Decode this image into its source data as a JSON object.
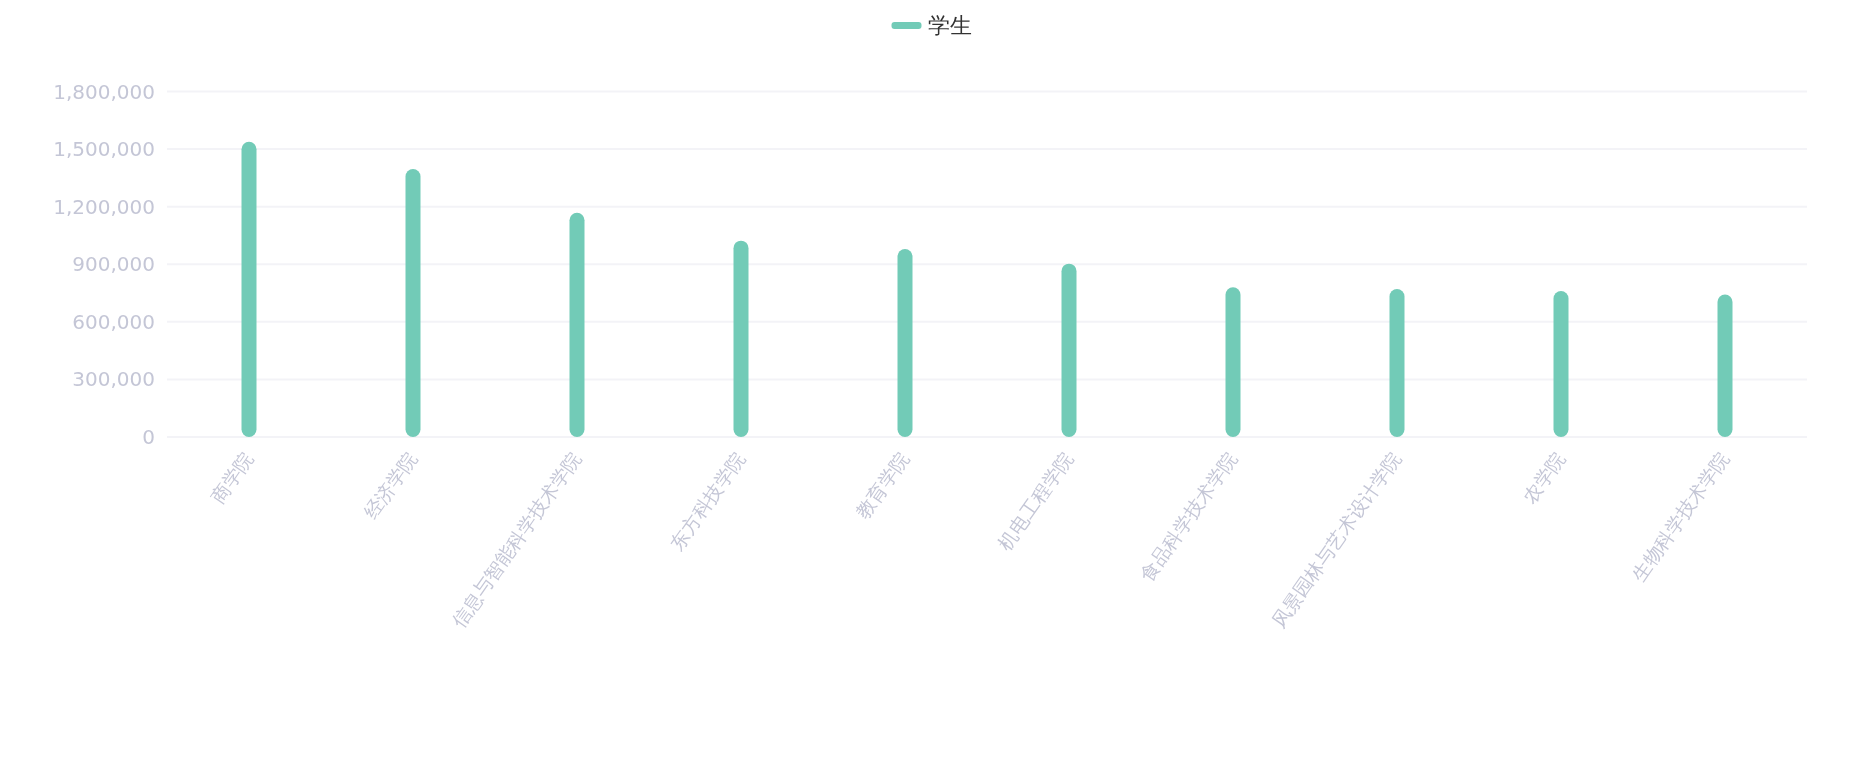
{
  "chart_data": {
    "type": "bar",
    "categories": [
      "商学院",
      "经济学院",
      "信息与智能科学技术学院",
      "东方科技学院",
      "教育学院",
      "机电工程学院",
      "食品科学技术学院",
      "风景园林与艺术设计学院",
      "农学院",
      "生物科学技术学院"
    ],
    "series": [
      {
        "name": "学生",
        "color": "#72cbb7",
        "values": [
          1538000,
          1396000,
          1168000,
          1023000,
          979000,
          903000,
          780000,
          771000,
          761000,
          742000
        ]
      }
    ],
    "ylim": [
      0,
      1800000
    ],
    "yticks": [
      {
        "value": 0,
        "label": "0"
      },
      {
        "value": 300000,
        "label": "300,000"
      },
      {
        "value": 600000,
        "label": "600,000"
      },
      {
        "value": 900000,
        "label": "900,000"
      },
      {
        "value": 1200000,
        "label": "1,200,000"
      },
      {
        "value": 1500000,
        "label": "1,500,000"
      },
      {
        "value": 1800000,
        "label": "1,800,000"
      }
    ],
    "grid": "y",
    "legend": "top"
  }
}
